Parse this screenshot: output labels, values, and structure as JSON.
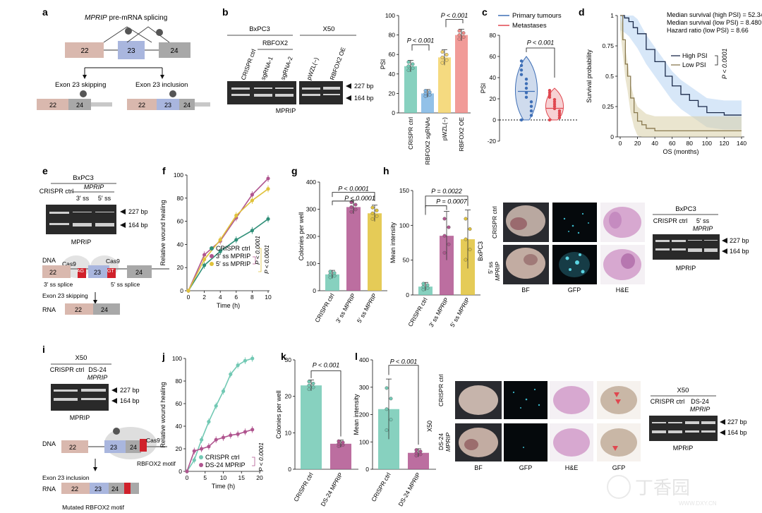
{
  "panels": {
    "a": {
      "letter": "a",
      "title_italic": "MPRIP",
      "title_rest": " pre-mRNA splicing",
      "exon22": "22",
      "exon23": "23",
      "exon24": "24",
      "skip_label": "Exon 23 skipping",
      "incl_label": "Exon 23 inclusion"
    },
    "b": {
      "letter": "b",
      "cell_left": "BxPC3",
      "cell_right": "X50",
      "rbfox2": "RBFOX2",
      "lanes": [
        "CRISPR ctrl",
        "sgRNA-1",
        "sgRNA-2",
        "pWZL(−)",
        "RBFOX2 OE"
      ],
      "bp_top": "227 bp",
      "bp_bottom": "164 bp",
      "gel_label": "MPRIP"
    },
    "c": {
      "letter": "c",
      "legend_primary": "Primary tumours",
      "legend_meta": "Metastases",
      "pval": "P < 0.001"
    },
    "d": {
      "letter": "d",
      "stat1": "Median survival (high PSI) = 52.34",
      "stat2": "Median survival (low PSI) = 8.480",
      "stat3": "Hazard ratio (low PSI) = 8.66",
      "legend_high": "High PSI",
      "legend_low": "Low PSI",
      "pval": "P < 0.0001"
    },
    "e": {
      "letter": "e",
      "cell": "BxPC3",
      "lane_ctrl": "CRISPR ctrl",
      "gene": "MPRIP",
      "lane_3": "3′ ss",
      "lane_5": "5′ ss",
      "bp_top": "227 bp",
      "bp_bottom": "164 bp",
      "gel_label": "MPRIP",
      "dna": "DNA",
      "cas9a": "Cas9",
      "cas9b": "Cas9",
      "ag": "AG",
      "gt": "GT",
      "splice3": "3′ ss splice",
      "splice5": "5′ ss splice",
      "skip": "Exon 23 skipping",
      "rna": "RNA",
      "exon22": "22",
      "exon23": "23",
      "exon24": "24"
    },
    "f": {
      "letter": "f"
    },
    "g": {
      "letter": "g"
    },
    "h": {
      "letter": "h",
      "row1": "CRISPR ctrl",
      "row2_a": "5′ ss",
      "row2_b": "MPRIP",
      "side": "BxPC3",
      "col_bf": "BF",
      "col_gfp": "GFP",
      "col_he": "H&E",
      "gel_cell": "BxPC3",
      "gel_lane1": "CRISPR ctrl",
      "gel_lane2_a": "5′ ss",
      "gel_lane2_b": "MPRIP",
      "bp_top": "227 bp",
      "bp_bottom": "164 bp",
      "gel_label": "MPRIP"
    },
    "i": {
      "letter": "i",
      "cell": "X50",
      "lane1": "CRISPR ctrl",
      "lane2_a": "DS-24",
      "lane2_b": "MPRIP",
      "bp_top": "227 bp",
      "bp_bottom": "164 bp",
      "gel_label": "MPRIP",
      "dna": "DNA",
      "cas9": "Cas9",
      "motif": "RBFOX2 motif",
      "incl": "Exon 23 inclusion",
      "rna": "RNA",
      "mutated": "Mutated RBFOX2 motif",
      "exon22": "22",
      "exon23": "23",
      "exon24": "24"
    },
    "j": {
      "letter": "j"
    },
    "k": {
      "letter": "k"
    },
    "l": {
      "letter": "l",
      "side": "X50",
      "row1": "CRISPR ctrl",
      "row2_a": "DS-24",
      "row2_b": "MPRIP",
      "col_bf": "BF",
      "col_gfp": "GFP",
      "col_he": "H&E",
      "col_gfp2": "GFP",
      "gel_cell": "X50",
      "gel_lane1": "CRISPR ctrl",
      "gel_lane2_a": "DS-24",
      "gel_lane2_b": "MPRIP",
      "bp_top": "227 bp",
      "bp_bottom": "164 bp",
      "gel_label": "MPRIP"
    }
  },
  "watermark": {
    "text_cn": "丁香园",
    "url": "WWW.DXY.CN"
  },
  "colors": {
    "ctrl": "#72c9b4",
    "sg": "#7fb6e4",
    "pwzl": "#f3d36a",
    "oe": "#ef8a86",
    "purple": "#b0558f",
    "yellow": "#e0c23a",
    "teal": "#2f8f78",
    "primary": "#3f6fb6",
    "meta": "#e0474f",
    "exon22": "#d9b8ae",
    "exon23": "#a9b6de",
    "exon24": "#a8a8a8",
    "red_mark": "#d0212b"
  },
  "chart_data": [
    {
      "panel": "b",
      "type": "bar",
      "categories": [
        "CRISPR ctrl",
        "RBFOX2 sgRNAs",
        "pWZL(−)",
        "RBFOX2 OE"
      ],
      "values": [
        48,
        20,
        57,
        80
      ],
      "errors": [
        6,
        4,
        8,
        6
      ],
      "ylabel": "PSI",
      "ylim": [
        0,
        100
      ],
      "yticks": [
        0,
        20,
        40,
        60,
        80,
        100
      ],
      "pvals": [
        "P < 0.001",
        "P < 0.001"
      ]
    },
    {
      "panel": "c",
      "type": "violin",
      "categories": [
        "Primary tumours",
        "Metastases"
      ],
      "medians": [
        27,
        11
      ],
      "ranges": [
        [
          0,
          60
        ],
        [
          0,
          30
        ]
      ],
      "ylabel": "PSI",
      "ylim": [
        -20,
        80
      ],
      "yticks": [
        -20,
        0,
        20,
        40,
        60,
        80
      ]
    },
    {
      "panel": "d",
      "type": "line",
      "xlabel": "OS (months)",
      "ylabel": "Survival probability",
      "xticks": [
        0,
        20,
        40,
        60,
        80,
        100,
        120,
        140
      ],
      "yticks": [
        0,
        0.25,
        0.5,
        0.75,
        1.0
      ],
      "ylim": [
        0,
        1
      ],
      "xlim": [
        0,
        140
      ],
      "series": [
        {
          "name": "High PSI",
          "x": [
            0,
            5,
            10,
            15,
            20,
            30,
            40,
            52,
            60,
            70,
            80,
            90,
            100,
            120,
            140
          ],
          "y": [
            1,
            0.98,
            0.95,
            0.9,
            0.85,
            0.72,
            0.62,
            0.5,
            0.42,
            0.35,
            0.3,
            0.25,
            0.2,
            0.18,
            0.18
          ]
        },
        {
          "name": "Low PSI",
          "x": [
            0,
            3,
            6,
            8.5,
            12,
            16,
            20,
            25,
            30,
            40,
            140
          ],
          "y": [
            1,
            0.8,
            0.6,
            0.5,
            0.32,
            0.2,
            0.13,
            0.1,
            0.07,
            0.05,
            0.05
          ]
        }
      ]
    },
    {
      "panel": "f",
      "type": "line",
      "xlabel": "Time (h)",
      "ylabel": "Relative wound healing",
      "x": [
        0,
        2,
        4,
        6,
        8,
        10
      ],
      "xticks": [
        0,
        2,
        4,
        6,
        8,
        10
      ],
      "yticks": [
        0,
        20,
        40,
        60,
        80,
        100
      ],
      "ylim": [
        0,
        100
      ],
      "series": [
        {
          "name": "CRISPR ctrl",
          "values": [
            0,
            22,
            34,
            44,
            52,
            62
          ]
        },
        {
          "name": "3′ ss MPRIP",
          "values": [
            0,
            31,
            43,
            63,
            83,
            97
          ]
        },
        {
          "name": "5′ ss MPRIP",
          "values": [
            0,
            27,
            44,
            65,
            78,
            88
          ]
        }
      ],
      "pvals": [
        "P < 0.0001",
        "P < 0.0001"
      ]
    },
    {
      "panel": "g",
      "type": "bar",
      "categories": [
        "CRISPR ctrl",
        "3′ ss MPRIP",
        "5′ ss MPRIP"
      ],
      "values": [
        60,
        308,
        285
      ],
      "errors": [
        15,
        25,
        30
      ],
      "ylabel": "Colonies per well",
      "ylim": [
        0,
        400
      ],
      "yticks": [
        0,
        100,
        200,
        300,
        400
      ],
      "pvals": [
        "P < 0.0001",
        "P < 0.0001"
      ]
    },
    {
      "panel": "h",
      "type": "bar",
      "categories": [
        "CRISPR ctrl",
        "3′ ss MPRIP",
        "5′ ss MPRIP"
      ],
      "values": [
        12,
        85,
        80
      ],
      "errors": [
        6,
        35,
        42
      ],
      "ylabel": "Mean intensity",
      "ylim": [
        0,
        150
      ],
      "yticks": [
        0,
        50,
        100,
        150
      ],
      "pvals": [
        "P = 0.0022",
        "P = 0.0007"
      ]
    },
    {
      "panel": "j",
      "type": "line",
      "xlabel": "Time (h)",
      "ylabel": "Relative wound healing",
      "x": [
        0,
        2,
        4,
        6,
        8,
        10,
        12,
        14,
        16,
        18
      ],
      "xticks": [
        0,
        5,
        10,
        15,
        20
      ],
      "yticks": [
        0,
        20,
        40,
        60,
        80,
        100
      ],
      "ylim": [
        0,
        100
      ],
      "xlim": [
        0,
        20
      ],
      "series": [
        {
          "name": "CRISPR ctrl",
          "values": [
            0,
            10,
            28,
            44,
            58,
            71,
            86,
            94,
            98,
            100
          ]
        },
        {
          "name": "DS-24 MPRIP",
          "values": [
            0,
            18,
            20,
            22,
            28,
            30,
            32,
            33,
            35,
            37
          ]
        }
      ],
      "pvals": [
        "P < 0.0001"
      ]
    },
    {
      "panel": "k",
      "type": "bar",
      "categories": [
        "CRISPR ctrl",
        "DS-24 MPRIP"
      ],
      "values": [
        23,
        7
      ],
      "errors": [
        1.5,
        1
      ],
      "ylabel": "Colonies per well",
      "ylim": [
        0,
        30
      ],
      "yticks": [
        0,
        10,
        20,
        30
      ],
      "pvals": [
        "P < 0.001"
      ]
    },
    {
      "panel": "l",
      "type": "bar",
      "categories": [
        "CRISPR ctrl",
        "DS-24 MPRIP"
      ],
      "values": [
        220,
        60
      ],
      "errors": [
        110,
        15
      ],
      "ylabel": "Mean intensity",
      "ylim": [
        0,
        400
      ],
      "yticks": [
        0,
        100,
        200,
        300,
        400
      ],
      "pvals": [
        "P < 0.001"
      ]
    }
  ]
}
